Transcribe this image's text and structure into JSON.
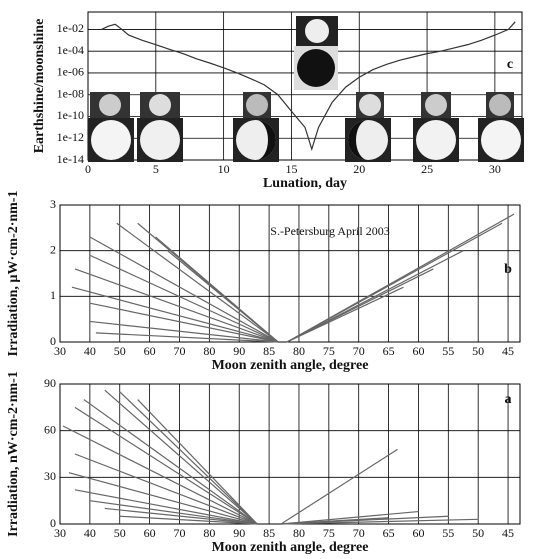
{
  "chart_data": [
    {
      "type": "line",
      "panel_label": "c",
      "xlabel": "Lunation, day",
      "ylabel": "Earthshine/moonshine",
      "log_y": true,
      "grid": true,
      "xlim": [
        0,
        32
      ],
      "ylim": [
        1e-14,
        0.4
      ],
      "xticks": [
        0,
        5,
        10,
        15,
        20,
        25,
        30
      ],
      "yticks": [
        {
          "value": 1e-14,
          "label": "1e-14"
        },
        {
          "value": 1e-12,
          "label": "1e-12"
        },
        {
          "value": 1e-10,
          "label": "1e-10"
        },
        {
          "value": 1e-08,
          "label": "1e-08"
        },
        {
          "value": 1e-06,
          "label": "1e-06"
        },
        {
          "value": 0.0001,
          "label": "1e-04"
        },
        {
          "value": 0.01,
          "label": "1e-02"
        }
      ],
      "series": [
        {
          "color": "#333333",
          "x": [
            1,
            1.5,
            2,
            2.5,
            3,
            4,
            5,
            6,
            7,
            8,
            9,
            10,
            11,
            12,
            13,
            14,
            15,
            16,
            16.5,
            17,
            18,
            19,
            20,
            21,
            22,
            23,
            24,
            25,
            26,
            27,
            28,
            29,
            30,
            31,
            31.5
          ],
          "values": [
            0.01,
            0.02,
            0.03,
            0.01,
            0.003,
            0.001,
            0.0004,
            0.00015,
            6e-05,
            2e-05,
            8e-06,
            3e-06,
            1e-06,
            3e-07,
            8e-08,
            1e-08,
            3e-10,
            1e-11,
            1e-13,
            1e-11,
            2e-09,
            5e-08,
            4e-07,
            2e-06,
            6e-06,
            1.5e-05,
            3e-05,
            6e-05,
            0.0001,
            0.0002,
            0.0004,
            0.001,
            0.003,
            0.01,
            0.05
          ]
        }
      ]
    },
    {
      "type": "line",
      "panel_label": "b",
      "annotation": "S.-Petersburg April 2003",
      "xlabel": "Moon zenith angle, degree",
      "ylabel": "Irradiation, µW·cm-2·nm-1",
      "grid": true,
      "xlim": [
        0,
        15.4
      ],
      "ylim": [
        0,
        3
      ],
      "yticks": [
        0,
        1,
        2,
        3
      ],
      "xticks": [
        {
          "value": 0,
          "label": "30"
        },
        {
          "value": 1,
          "label": "40"
        },
        {
          "value": 2,
          "label": "50"
        },
        {
          "value": 3,
          "label": "60"
        },
        {
          "value": 4,
          "label": "70"
        },
        {
          "value": 5,
          "label": "80"
        },
        {
          "value": 6,
          "label": "90"
        },
        {
          "value": 7,
          "label": "85"
        },
        {
          "value": 8,
          "label": "80"
        },
        {
          "value": 9,
          "label": "75"
        },
        {
          "value": 10,
          "label": "70"
        },
        {
          "value": 11,
          "label": "65"
        },
        {
          "value": 12,
          "label": "60"
        },
        {
          "value": 13,
          "label": "55"
        },
        {
          "value": 14,
          "label": "50"
        },
        {
          "value": 15,
          "label": "45"
        }
      ],
      "series": [
        {
          "color": "#666666",
          "x": [
            1.0,
            7.3
          ],
          "values": [
            2.3,
            0
          ]
        },
        {
          "color": "#666666",
          "x": [
            1.9,
            7.3
          ],
          "values": [
            2.6,
            0
          ]
        },
        {
          "color": "#666666",
          "x": [
            2.6,
            7.3
          ],
          "values": [
            2.6,
            0
          ]
        },
        {
          "color": "#666666",
          "x": [
            3.2,
            7.3
          ],
          "values": [
            2.3,
            0
          ]
        },
        {
          "color": "#666666",
          "x": [
            3.6,
            7.3
          ],
          "values": [
            2.0,
            0
          ]
        },
        {
          "color": "#666666",
          "x": [
            1.0,
            7.3
          ],
          "values": [
            1.9,
            0
          ]
        },
        {
          "color": "#666666",
          "x": [
            0.5,
            7.3
          ],
          "values": [
            1.6,
            0
          ]
        },
        {
          "color": "#666666",
          "x": [
            0.4,
            7.3
          ],
          "values": [
            1.2,
            0
          ]
        },
        {
          "color": "#666666",
          "x": [
            1.0,
            7.3
          ],
          "values": [
            0.85,
            0
          ]
        },
        {
          "color": "#666666",
          "x": [
            1.0,
            7.3
          ],
          "values": [
            0.45,
            0
          ]
        },
        {
          "color": "#666666",
          "x": [
            1.2,
            7.3
          ],
          "values": [
            0.2,
            0
          ]
        },
        {
          "color": "#666666",
          "x": [
            7.6,
            15.2
          ],
          "values": [
            0,
            2.8
          ]
        },
        {
          "color": "#666666",
          "x": [
            7.6,
            14.8
          ],
          "values": [
            0,
            2.6
          ]
        },
        {
          "color": "#666666",
          "x": [
            7.6,
            13.5
          ],
          "values": [
            0,
            2.0
          ]
        },
        {
          "color": "#666666",
          "x": [
            7.6,
            12.5
          ],
          "values": [
            0,
            1.6
          ]
        },
        {
          "color": "#666666",
          "x": [
            7.6,
            11.5
          ],
          "values": [
            0,
            1.2
          ]
        }
      ]
    },
    {
      "type": "line",
      "panel_label": "a",
      "xlabel": "Moon zenith angle, degree",
      "ylabel": "Irradiation, nW·cm-2·nm-1",
      "grid": true,
      "xlim": [
        0,
        15.4
      ],
      "ylim": [
        0,
        90
      ],
      "yticks": [
        0,
        30,
        60,
        90
      ],
      "xticks": [
        {
          "value": 0,
          "label": "30"
        },
        {
          "value": 1,
          "label": "40"
        },
        {
          "value": 2,
          "label": "50"
        },
        {
          "value": 3,
          "label": "60"
        },
        {
          "value": 4,
          "label": "70"
        },
        {
          "value": 5,
          "label": "80"
        },
        {
          "value": 6,
          "label": "90"
        },
        {
          "value": 7,
          "label": "85"
        },
        {
          "value": 8,
          "label": "80"
        },
        {
          "value": 9,
          "label": "75"
        },
        {
          "value": 10,
          "label": "70"
        },
        {
          "value": 11,
          "label": "65"
        },
        {
          "value": 12,
          "label": "60"
        },
        {
          "value": 13,
          "label": "55"
        },
        {
          "value": 14,
          "label": "50"
        },
        {
          "value": 15,
          "label": "45"
        }
      ],
      "series": [
        {
          "color": "#666666",
          "x": [
            0.1,
            6.6
          ],
          "values": [
            63,
            0
          ]
        },
        {
          "color": "#666666",
          "x": [
            0.5,
            6.6
          ],
          "values": [
            75,
            0
          ]
        },
        {
          "color": "#666666",
          "x": [
            0.8,
            6.6
          ],
          "values": [
            80,
            0
          ]
        },
        {
          "color": "#666666",
          "x": [
            1.5,
            6.6
          ],
          "values": [
            86,
            0
          ]
        },
        {
          "color": "#666666",
          "x": [
            2.0,
            6.6
          ],
          "values": [
            85,
            0
          ]
        },
        {
          "color": "#666666",
          "x": [
            2.6,
            6.6
          ],
          "values": [
            80,
            0
          ]
        },
        {
          "color": "#666666",
          "x": [
            0.5,
            6.6
          ],
          "values": [
            45,
            0
          ]
        },
        {
          "color": "#666666",
          "x": [
            0.3,
            6.6
          ],
          "values": [
            33,
            0
          ]
        },
        {
          "color": "#666666",
          "x": [
            0.5,
            6.6
          ],
          "values": [
            22,
            0
          ]
        },
        {
          "color": "#666666",
          "x": [
            1.0,
            6.6
          ],
          "values": [
            15,
            0
          ]
        },
        {
          "color": "#666666",
          "x": [
            1.5,
            6.6
          ],
          "values": [
            10,
            0
          ]
        },
        {
          "color": "#666666",
          "x": [
            2.0,
            6.6
          ],
          "values": [
            5,
            0
          ]
        },
        {
          "color": "#666666",
          "x": [
            7.4,
            11.3
          ],
          "values": [
            0,
            48
          ]
        },
        {
          "color": "#666666",
          "x": [
            7.4,
            12.0
          ],
          "values": [
            0,
            8
          ]
        },
        {
          "color": "#666666",
          "x": [
            7.4,
            13.0
          ],
          "values": [
            0,
            5
          ]
        },
        {
          "color": "#666666",
          "x": [
            7.4,
            14.0
          ],
          "values": [
            0,
            3
          ]
        },
        {
          "color": "#666666",
          "x": [
            7.4,
            11.0
          ],
          "values": [
            0,
            4
          ]
        }
      ]
    }
  ]
}
